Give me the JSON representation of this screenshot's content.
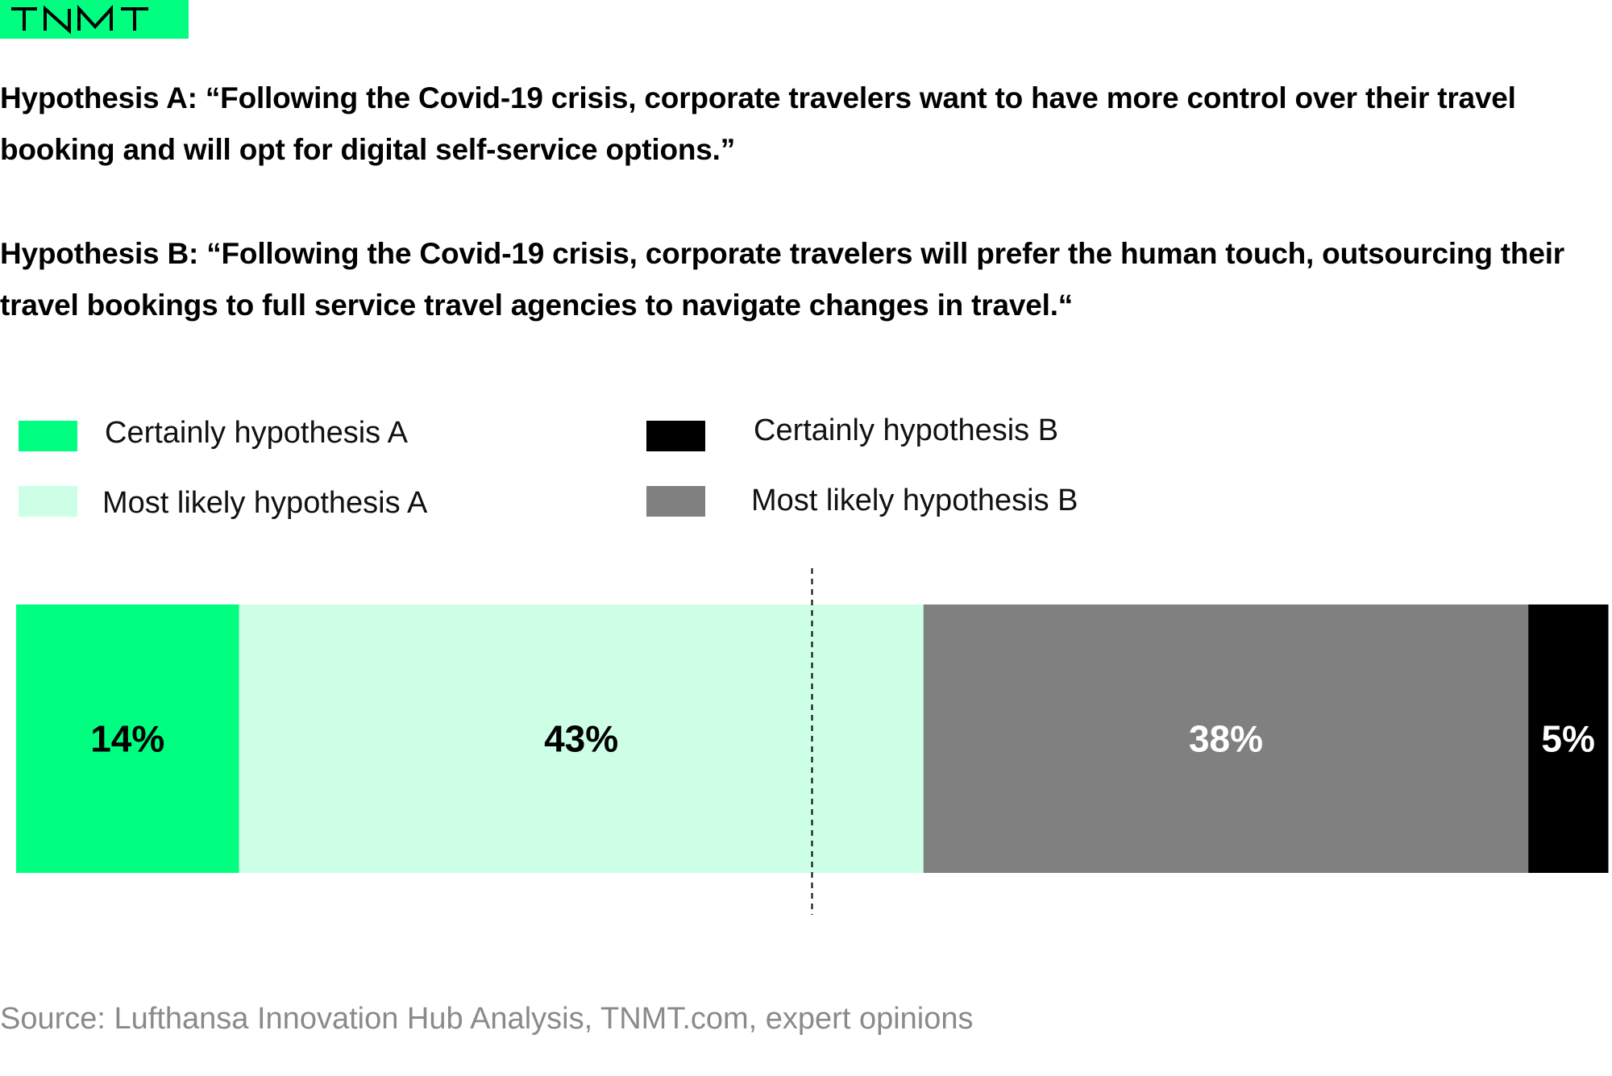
{
  "logo": {
    "text": "TNMT"
  },
  "hypotheses": {
    "a": "Hypothesis A: “Following the Covid-19 crisis, corporate travelers want to have more control over their travel booking and will opt for digital self-service options.”",
    "b": "Hypothesis B: “Following the Covid-19 crisis, corporate travelers will prefer the human touch, outsourcing their travel bookings to full service travel agencies to navigate changes in travel.“"
  },
  "legend": {
    "certainly_a": {
      "label": "Certainly hypothesis A",
      "color": "#00ff80"
    },
    "most_likely_a": {
      "label": "Most likely hypothesis A",
      "color": "#ccffe6"
    },
    "certainly_b": {
      "label": "Certainly hypothesis B",
      "color": "#000000"
    },
    "most_likely_b": {
      "label": "Most likely hypothesis B",
      "color": "#808080"
    }
  },
  "chart_data": {
    "type": "bar",
    "orientation": "horizontal",
    "stacked": true,
    "title": "",
    "xlabel": "",
    "ylabel": "",
    "xlim": [
      0,
      100
    ],
    "grid": false,
    "legend_position": "top",
    "midline": 50,
    "segments": [
      {
        "name": "Certainly hypothesis A",
        "value": 14,
        "label": "14%",
        "color": "#00ff80",
        "label_color": "#000000"
      },
      {
        "name": "Most likely hypothesis A",
        "value": 43,
        "label": "43%",
        "color": "#ccffe6",
        "label_color": "#000000"
      },
      {
        "name": "Most likely hypothesis B",
        "value": 38,
        "label": "38%",
        "color": "#808080",
        "label_color": "#ffffff"
      },
      {
        "name": "Certainly hypothesis B",
        "value": 5,
        "label": "5%",
        "color": "#000000",
        "label_color": "#ffffff"
      }
    ]
  },
  "source": "Source: Lufthansa Innovation Hub Analysis, TNMT.com, expert opinions"
}
